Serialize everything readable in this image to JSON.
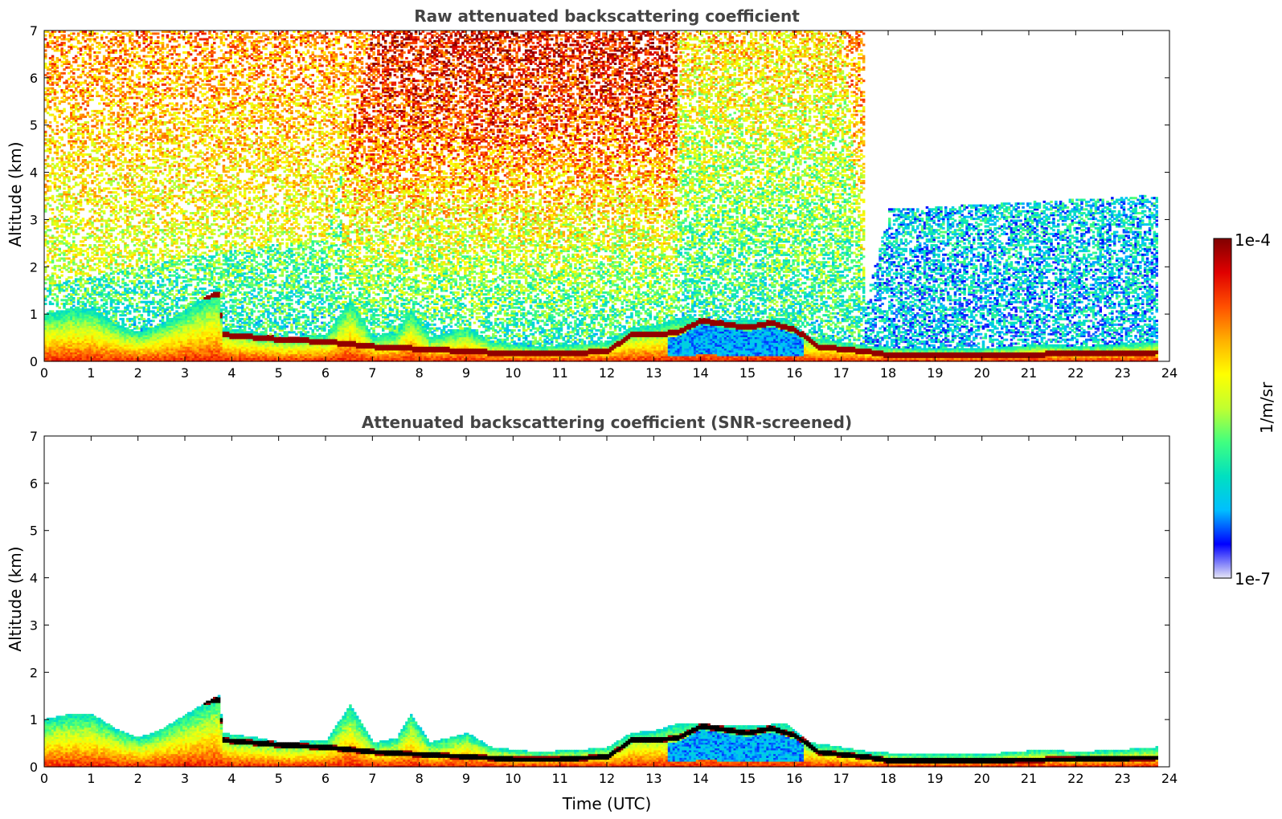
{
  "chart_data": [
    {
      "type": "heatmap",
      "title": "Raw attenuated backscattering coefficient",
      "xlabel": "",
      "ylabel": "Altitude (km)",
      "xlim": [
        0,
        24
      ],
      "ylim": [
        0,
        7
      ],
      "x_ticks": [
        "0",
        "1",
        "2",
        "3",
        "4",
        "5",
        "6",
        "7",
        "8",
        "9",
        "10",
        "11",
        "12",
        "13",
        "14",
        "15",
        "16",
        "17",
        "18",
        "19",
        "20",
        "21",
        "22",
        "23",
        "24"
      ],
      "y_ticks": [
        "0",
        "1",
        "2",
        "3",
        "4",
        "5",
        "6",
        "7"
      ],
      "data_end_time": 23.75,
      "boundary_layer_top_km": [
        [
          0,
          1.0
        ],
        [
          0.5,
          1.1
        ],
        [
          1.0,
          1.1
        ],
        [
          1.5,
          0.8
        ],
        [
          2.0,
          0.6
        ],
        [
          2.5,
          0.8
        ],
        [
          3.0,
          1.1
        ],
        [
          3.5,
          1.4
        ],
        [
          3.7,
          1.5
        ],
        [
          3.8,
          0.7
        ],
        [
          4.5,
          0.6
        ],
        [
          5.0,
          0.5
        ],
        [
          6.0,
          0.55
        ],
        [
          6.5,
          1.3
        ],
        [
          7.0,
          0.5
        ],
        [
          7.5,
          0.6
        ],
        [
          7.8,
          1.1
        ],
        [
          8.2,
          0.5
        ],
        [
          9.0,
          0.7
        ],
        [
          9.5,
          0.4
        ],
        [
          10.5,
          0.3
        ],
        [
          11.5,
          0.35
        ],
        [
          12.0,
          0.4
        ],
        [
          12.5,
          0.7
        ],
        [
          13.0,
          0.75
        ],
        [
          13.5,
          0.9
        ],
        [
          14.0,
          0.9
        ],
        [
          14.5,
          0.85
        ],
        [
          15.0,
          0.85
        ],
        [
          15.8,
          0.9
        ],
        [
          16.3,
          0.5
        ],
        [
          17.0,
          0.4
        ],
        [
          17.6,
          0.3
        ],
        [
          18.5,
          0.25
        ],
        [
          20.0,
          0.25
        ],
        [
          21.3,
          0.35
        ],
        [
          22.0,
          0.3
        ],
        [
          23.0,
          0.35
        ],
        [
          23.7,
          0.4
        ]
      ],
      "residual_layer_km": [
        [
          3.2,
          1.35
        ],
        [
          3.7,
          1.4
        ],
        [
          3.8,
          0.55
        ],
        [
          5.0,
          0.45
        ],
        [
          6.0,
          0.4
        ],
        [
          7.0,
          0.3
        ],
        [
          8.0,
          0.25
        ],
        [
          9.0,
          0.2
        ],
        [
          10.0,
          0.15
        ],
        [
          11.0,
          0.15
        ],
        [
          12.0,
          0.2
        ],
        [
          12.5,
          0.55
        ],
        [
          13.0,
          0.55
        ],
        [
          13.5,
          0.6
        ],
        [
          14.0,
          0.85
        ],
        [
          15.0,
          0.7
        ],
        [
          15.5,
          0.8
        ],
        [
          16.0,
          0.65
        ],
        [
          16.5,
          0.3
        ],
        [
          17.5,
          0.2
        ],
        [
          18.0,
          0.12
        ],
        [
          20.0,
          0.12
        ],
        [
          22.0,
          0.15
        ],
        [
          23.7,
          0.18
        ]
      ],
      "noise_top_km": [
        [
          0,
          1.6
        ],
        [
          3.0,
          2.2
        ],
        [
          6.0,
          2.6
        ],
        [
          7.0,
          7
        ],
        [
          13.0,
          7
        ],
        [
          17.0,
          7
        ],
        [
          17.5,
          1.2
        ],
        [
          18.0,
          3.2
        ],
        [
          23.7,
          3.5
        ]
      ]
    },
    {
      "type": "heatmap",
      "title": "Attenuated backscattering coefficient (SNR-screened)",
      "xlabel": "Time (UTC)",
      "ylabel": "Altitude (km)",
      "xlim": [
        0,
        24
      ],
      "ylim": [
        0,
        7
      ],
      "x_ticks": [
        "0",
        "1",
        "2",
        "3",
        "4",
        "5",
        "6",
        "7",
        "8",
        "9",
        "10",
        "11",
        "12",
        "13",
        "14",
        "15",
        "16",
        "17",
        "18",
        "19",
        "20",
        "21",
        "22",
        "23",
        "24"
      ],
      "y_ticks": [
        "0",
        "1",
        "2",
        "3",
        "4",
        "5",
        "6",
        "7"
      ],
      "data_end_time": 23.75
    }
  ],
  "colorbar": {
    "max_label": "1e-4",
    "min_label": "1e-7",
    "unit_label": "1/m/sr",
    "scale": "log",
    "colormap": [
      "#e6e6f5",
      "#0000ff",
      "#00bfff",
      "#00e0c0",
      "#40ff80",
      "#c0ff30",
      "#ffff00",
      "#ffb000",
      "#ff5000",
      "#e00000",
      "#800000"
    ],
    "screened_strong_color": "#000000"
  }
}
